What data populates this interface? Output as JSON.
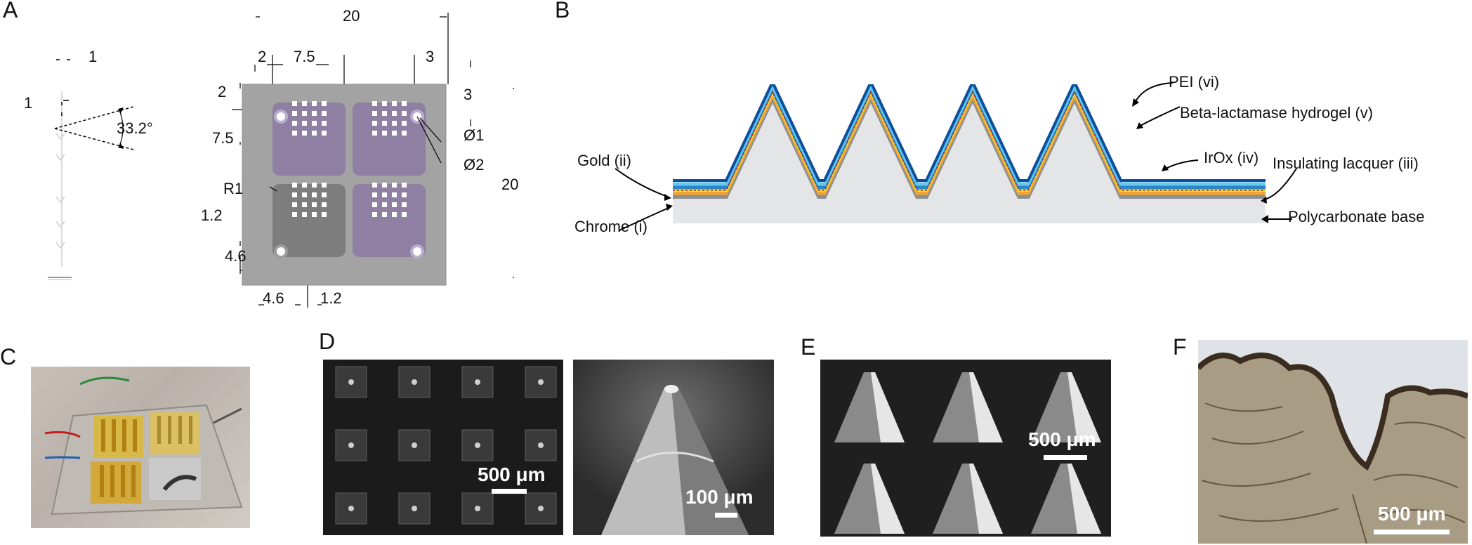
{
  "panels": {
    "a": "A",
    "b": "B",
    "c": "C",
    "d": "D",
    "e": "E",
    "f": "F"
  },
  "panel_a": {
    "side_dims": {
      "width": "1",
      "height": "1",
      "angle": "33.2°"
    },
    "top_dims": {
      "total_width": "20",
      "left_offset": "2",
      "pad_width": "7.5",
      "right_offset": "3",
      "top_offset_left": "2",
      "top_offset_right": "3",
      "pad_height": "7.5",
      "total_height": "20",
      "hole_small": "Ø1",
      "hole_large": "Ø2",
      "corner_radius": "R1",
      "gap_v": "1.2",
      "bottom_offset": "4.6",
      "bottom_left": "4.6",
      "bottom_gap": "1.2"
    },
    "colors": {
      "base": "#a3a3a3",
      "pad_purple": "#8e7fa3",
      "pad_gray": "#7d7d7d"
    }
  },
  "panel_b": {
    "labels": {
      "pei": "PEI (vi)",
      "hydrogel": "Beta-lactamase hydrogel (v)",
      "irox": "IrOx (iv)",
      "lacquer": "Insulating lacquer (iii)",
      "base": "Polycarbonate base",
      "gold": "Gold (ii)",
      "chrome": "Chrome (i)"
    },
    "colors": {
      "base": "#e4e5e7",
      "chrome": "#8f8f8f",
      "gold": "#f3a531",
      "irox": "#f7e22a",
      "lacquer": "#2c86c6",
      "hydrogel": "#63c7ef",
      "pei": "#0b4f9e"
    }
  },
  "panel_d": {
    "scale_left": "500 μm",
    "scale_right": "100 μm"
  },
  "panel_e": {
    "scale": "500 μm"
  },
  "panel_f": {
    "scale": "500 μm"
  }
}
